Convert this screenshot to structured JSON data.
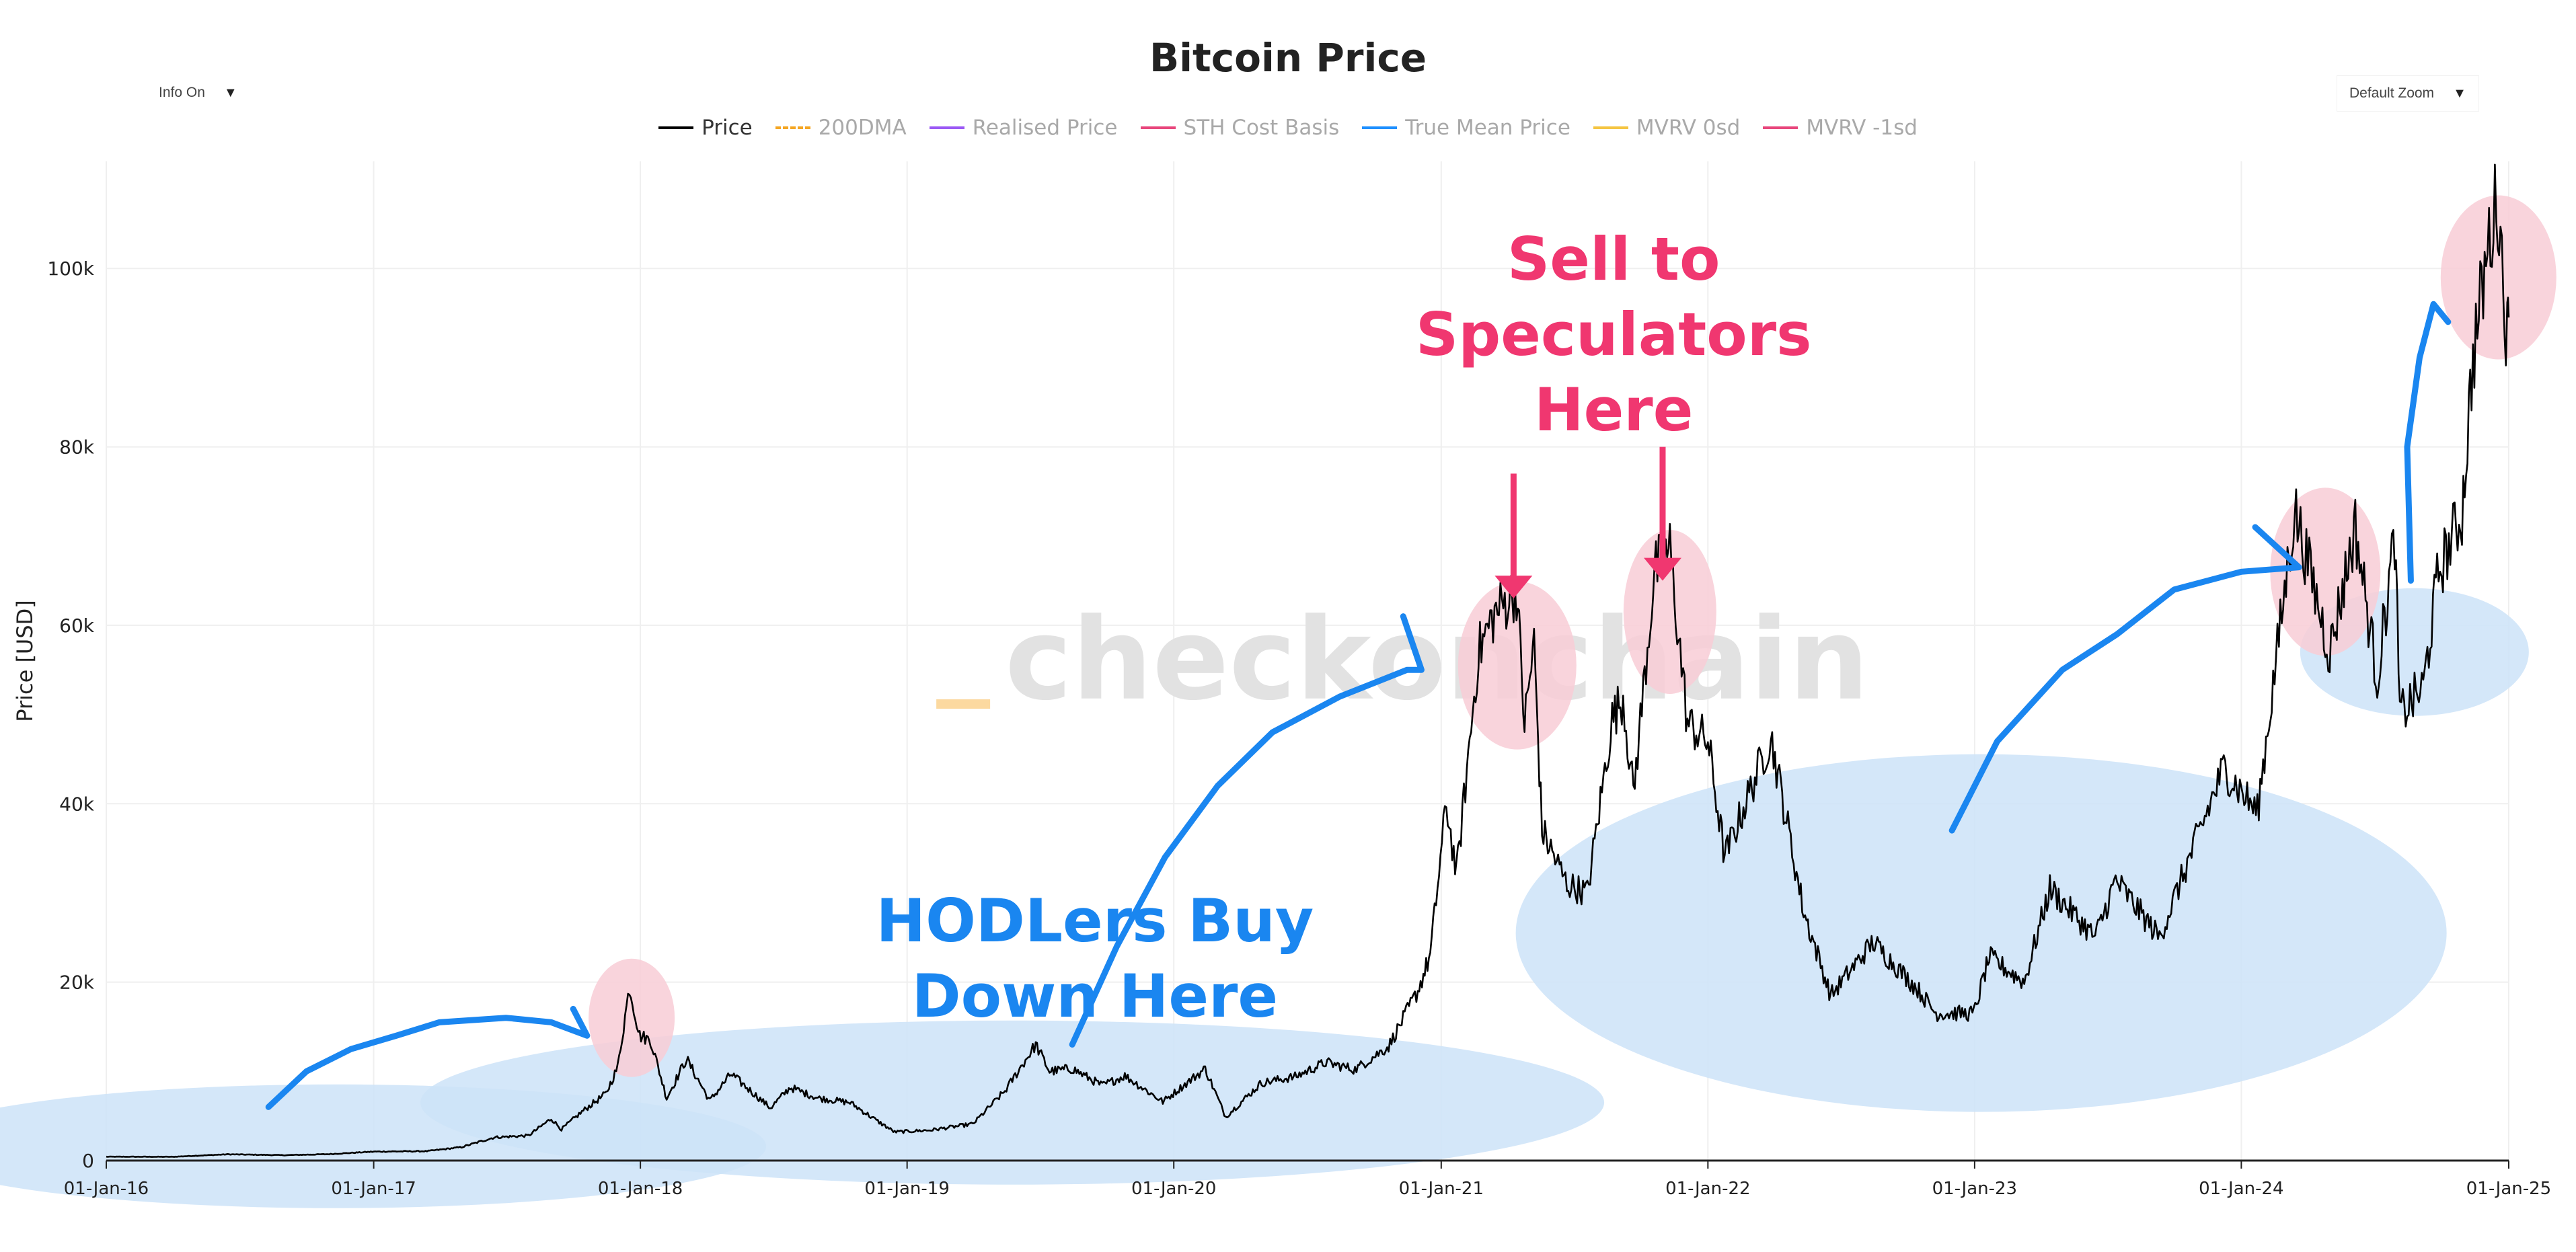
{
  "controls": {
    "info_label": "Info On",
    "zoom_label": "Default Zoom"
  },
  "chart_data": {
    "type": "line",
    "title": "Bitcoin Price",
    "xlabel": "",
    "ylabel": "Price [USD]",
    "x_ticks": [
      "01-Jan-16",
      "01-Jan-17",
      "01-Jan-18",
      "01-Jan-19",
      "01-Jan-20",
      "01-Jan-21",
      "01-Jan-22",
      "01-Jan-23",
      "01-Jan-24",
      "01-Jan-25"
    ],
    "y_ticks": [
      "0",
      "20k",
      "40k",
      "60k",
      "80k",
      "100k"
    ],
    "xlim": [
      "2016-01-01",
      "2025-01-01"
    ],
    "ylim": [
      0,
      112000
    ],
    "grid": true,
    "legend_position": "top-center",
    "legend": [
      {
        "name": "Price",
        "color": "#000000",
        "dash": "solid",
        "active": true
      },
      {
        "name": "200DMA",
        "color": "#f5a623",
        "dash": "dash",
        "active": false
      },
      {
        "name": "Realised Price",
        "color": "#9b59f5",
        "dash": "solid",
        "active": false
      },
      {
        "name": "STH Cost Basis",
        "color": "#e8467c",
        "dash": "solid",
        "active": false
      },
      {
        "name": "True Mean Price",
        "color": "#1e90ff",
        "dash": "solid",
        "active": false
      },
      {
        "name": "MVRV 0sd",
        "color": "#f5c542",
        "dash": "solid",
        "active": false
      },
      {
        "name": "MVRV -1sd",
        "color": "#e8467c",
        "dash": "solid",
        "active": false
      }
    ],
    "series": [
      {
        "name": "Price",
        "color": "#000000",
        "points": [
          [
            "2016-01-01",
            430
          ],
          [
            "2016-04-01",
            420
          ],
          [
            "2016-06-15",
            700
          ],
          [
            "2016-09-01",
            600
          ],
          [
            "2016-11-01",
            720
          ],
          [
            "2017-01-01",
            1000
          ],
          [
            "2017-03-15",
            1050
          ],
          [
            "2017-05-01",
            1500
          ],
          [
            "2017-06-15",
            2600
          ],
          [
            "2017-08-01",
            2800
          ],
          [
            "2017-09-01",
            4700
          ],
          [
            "2017-09-15",
            3500
          ],
          [
            "2017-10-15",
            5600
          ],
          [
            "2017-11-15",
            7500
          ],
          [
            "2017-12-01",
            10500
          ],
          [
            "2017-12-17",
            19500
          ],
          [
            "2017-12-31",
            14000
          ],
          [
            "2018-01-15",
            13500
          ],
          [
            "2018-02-06",
            7000
          ],
          [
            "2018-03-05",
            11400
          ],
          [
            "2018-04-06",
            6700
          ],
          [
            "2018-05-05",
            9700
          ],
          [
            "2018-06-28",
            5900
          ],
          [
            "2018-07-25",
            8200
          ],
          [
            "2018-09-01",
            7000
          ],
          [
            "2018-10-15",
            6500
          ],
          [
            "2018-11-20",
            4500
          ],
          [
            "2018-12-15",
            3200
          ],
          [
            "2019-02-01",
            3400
          ],
          [
            "2019-04-01",
            4100
          ],
          [
            "2019-05-15",
            7800
          ],
          [
            "2019-06-26",
            13000
          ],
          [
            "2019-07-15",
            10000
          ],
          [
            "2019-08-15",
            10300
          ],
          [
            "2019-09-25",
            8400
          ],
          [
            "2019-10-26",
            9500
          ],
          [
            "2019-12-17",
            6600
          ],
          [
            "2020-02-13",
            10300
          ],
          [
            "2020-03-12",
            4900
          ],
          [
            "2020-04-30",
            8700
          ],
          [
            "2020-06-15",
            9400
          ],
          [
            "2020-07-27",
            11000
          ],
          [
            "2020-09-05",
            10200
          ],
          [
            "2020-10-21",
            12800
          ],
          [
            "2020-11-30",
            19000
          ],
          [
            "2020-12-17",
            23000
          ],
          [
            "2021-01-08",
            40000
          ],
          [
            "2021-01-22",
            32000
          ],
          [
            "2021-02-21",
            57000
          ],
          [
            "2021-03-13",
            61000
          ],
          [
            "2021-04-14",
            64000
          ],
          [
            "2021-04-25",
            49000
          ],
          [
            "2021-05-08",
            58000
          ],
          [
            "2021-05-19",
            37000
          ],
          [
            "2021-06-22",
            31000
          ],
          [
            "2021-07-20",
            30000
          ],
          [
            "2021-08-23",
            49500
          ],
          [
            "2021-09-07",
            52000
          ],
          [
            "2021-09-21",
            41000
          ],
          [
            "2021-10-20",
            66000
          ],
          [
            "2021-11-10",
            68500
          ],
          [
            "2021-12-04",
            49000
          ],
          [
            "2022-01-01",
            47000
          ],
          [
            "2022-01-24",
            34000
          ],
          [
            "2022-03-28",
            47500
          ],
          [
            "2022-05-12",
            28000
          ],
          [
            "2022-06-18",
            18500
          ],
          [
            "2022-08-15",
            24500
          ],
          [
            "2022-10-15",
            19200
          ],
          [
            "2022-11-09",
            16500
          ],
          [
            "2022-12-31",
            16500
          ],
          [
            "2023-01-21",
            22800
          ],
          [
            "2023-03-10",
            20000
          ],
          [
            "2023-04-14",
            30500
          ],
          [
            "2023-06-15",
            25000
          ],
          [
            "2023-07-13",
            31400
          ],
          [
            "2023-09-11",
            25000
          ],
          [
            "2023-10-25",
            34500
          ],
          [
            "2023-12-08",
            44000
          ],
          [
            "2024-01-23",
            39000
          ],
          [
            "2024-03-14",
            73000
          ],
          [
            "2024-05-01",
            57000
          ],
          [
            "2024-06-05",
            71000
          ],
          [
            "2024-07-05",
            54000
          ],
          [
            "2024-07-29",
            70000
          ],
          [
            "2024-08-05",
            50000
          ],
          [
            "2024-09-06",
            53000
          ],
          [
            "2024-09-27",
            66000
          ],
          [
            "2024-10-29",
            72500
          ],
          [
            "2024-11-13",
            90000
          ],
          [
            "2024-12-05",
            103000
          ],
          [
            "2024-12-17",
            108000
          ],
          [
            "2024-12-30",
            92000
          ],
          [
            "2025-01-01",
            94500
          ]
        ]
      }
    ],
    "annotations": [
      {
        "text": "HODLers Buy Down Here",
        "lines": [
          "HODLers Buy",
          "Down Here"
        ],
        "color": "#1a86f0"
      },
      {
        "text": "Sell to Speculators Here",
        "lines": [
          "Sell to",
          "Speculators",
          "Here"
        ],
        "color": "#f03770"
      }
    ],
    "highlights": {
      "buy_zones_color": "#cce3f8",
      "sell_zones_color": "#f8cdd6"
    },
    "watermark": "_checkonchain"
  }
}
